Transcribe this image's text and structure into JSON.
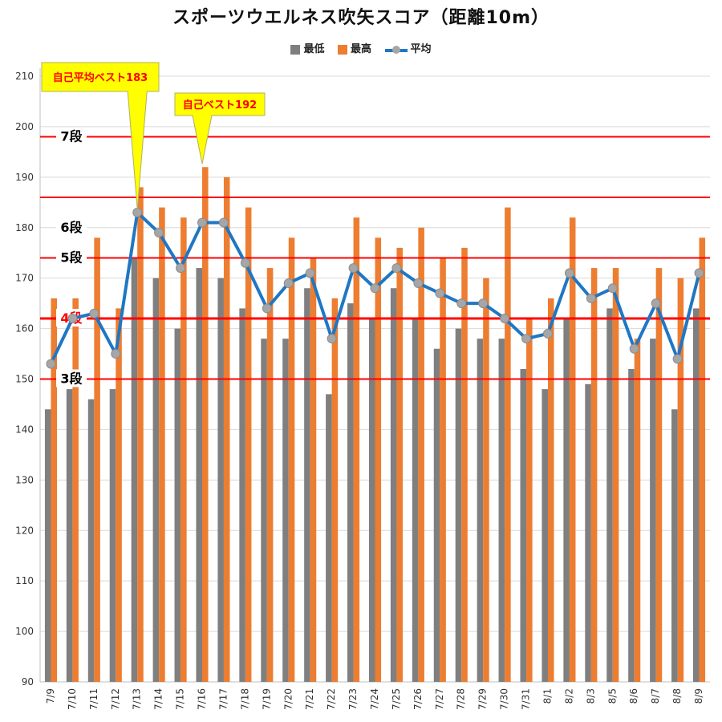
{
  "chart_data": {
    "type": "bar",
    "title": "スポーツウエルネス吹矢スコア（距離10m）",
    "categories": [
      "7/9",
      "7/10",
      "7/11",
      "7/12",
      "7/13",
      "7/14",
      "7/15",
      "7/16",
      "7/17",
      "7/18",
      "7/19",
      "7/20",
      "7/21",
      "7/22",
      "7/23",
      "7/24",
      "7/25",
      "7/26",
      "7/27",
      "7/28",
      "7/29",
      "7/30",
      "7/31",
      "8/1",
      "8/2",
      "8/3",
      "8/5",
      "8/6",
      "8/7",
      "8/8",
      "8/9"
    ],
    "series": [
      {
        "name": "最低",
        "type": "bar",
        "color": "#7f7f7f",
        "values": [
          144,
          148,
          146,
          148,
          174,
          170,
          160,
          172,
          170,
          164,
          158,
          158,
          168,
          147,
          165,
          162,
          168,
          162,
          156,
          160,
          158,
          158,
          152,
          148,
          162,
          149,
          164,
          152,
          158,
          144,
          164
        ]
      },
      {
        "name": "最高",
        "type": "bar",
        "color": "#ed7d31",
        "values": [
          166,
          166,
          178,
          164,
          188,
          184,
          182,
          192,
          190,
          184,
          172,
          178,
          174,
          166,
          182,
          178,
          176,
          180,
          174,
          176,
          170,
          184,
          162,
          166,
          182,
          172,
          172,
          158,
          172,
          170,
          178
        ]
      },
      {
        "name": "平均",
        "type": "line",
        "color": "#1f77c4",
        "marker_color": "#a6a6a6",
        "values": [
          153,
          162,
          163,
          155,
          183,
          179,
          172,
          181,
          181,
          173,
          164,
          169,
          171,
          158,
          172,
          168,
          172,
          169,
          167,
          165,
          165,
          162,
          158,
          159,
          171,
          166,
          168,
          156,
          165,
          154,
          171
        ]
      }
    ],
    "ylim": [
      90,
      210
    ],
    "yticks": [
      90,
      100,
      110,
      120,
      130,
      140,
      150,
      160,
      170,
      180,
      190,
      200,
      210
    ],
    "grid": true,
    "legend_position": "top",
    "threshold_color": "#ff0000",
    "thresholds": [
      {
        "label": "7段",
        "value": 198,
        "label_color": "#000000"
      },
      {
        "label": "",
        "value": 186,
        "label_color": "#000000"
      },
      {
        "label": "6段",
        "value": 180,
        "label_color": "#000000",
        "line": false
      },
      {
        "label": "5段",
        "value": 174,
        "label_color": "#000000"
      },
      {
        "label": "4段",
        "value": 162,
        "label_color": "#ff0000",
        "bold": true
      },
      {
        "label": "3段",
        "value": 150,
        "label_color": "#000000"
      }
    ],
    "annotations": [
      {
        "text": "自己平均ベスト183",
        "category": "7/13",
        "value": 183,
        "fill": "#ffff00",
        "text_color": "#ff0000"
      },
      {
        "text": "自己ベスト192",
        "category": "7/16",
        "value": 192,
        "fill": "#ffff00",
        "text_color": "#ff0000"
      }
    ]
  }
}
